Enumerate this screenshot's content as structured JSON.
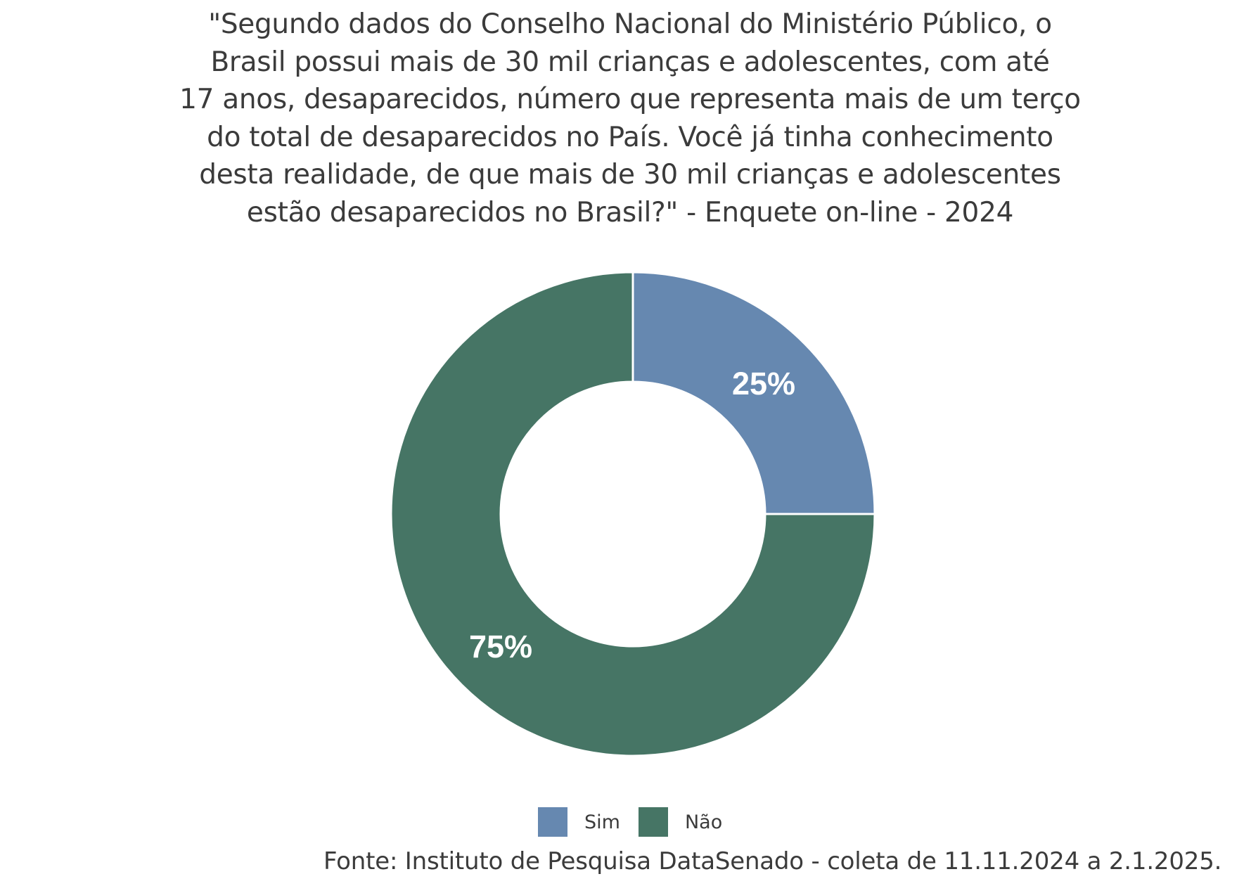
{
  "title": {
    "lines": [
      "\"Segundo dados do Conselho Nacional do Ministério Público, o",
      "Brasil possui mais de 30 mil crianças e adolescentes, com até",
      "17 anos, desaparecidos, número que representa mais de um terço",
      "do total de desaparecidos no País. Você já tinha conhecimento",
      "desta realidade, de que mais de 30 mil crianças e adolescentes",
      "estão desaparecidos no Brasil?\" - Enquete on-line - 2024"
    ]
  },
  "legend": {
    "items": [
      {
        "label": "Sim",
        "color": "#6688b0"
      },
      {
        "label": "Não",
        "color": "#467565"
      }
    ]
  },
  "labels": {
    "sim": "25%",
    "nao": "75%"
  },
  "footer": {
    "source": "Fonte: Instituto de Pesquisa DataSenado - coleta de 11.11.2024 a 2.1.2025."
  },
  "chart_data": {
    "type": "pie",
    "subtype": "donut",
    "title": "\"Segundo dados do Conselho Nacional do Ministério Público, o Brasil possui mais de 30 mil crianças e adolescentes, com até 17 anos, desaparecidos, número que representa mais de um terço do total de desaparecidos no País. Você já tinha conhecimento desta realidade, de que mais de 30 mil crianças e adolescentes estão desaparecidos no Brasil?\" - Enquete on-line - 2024",
    "categories": [
      "Sim",
      "Não"
    ],
    "values": [
      25,
      75
    ],
    "unit": "%",
    "colors": [
      "#6688b0",
      "#467565"
    ],
    "data_labels": [
      "25%",
      "75%"
    ],
    "legend_position": "bottom",
    "source": "Fonte: Instituto de Pesquisa DataSenado - coleta de 11.11.2024 a 2.1.2025."
  }
}
